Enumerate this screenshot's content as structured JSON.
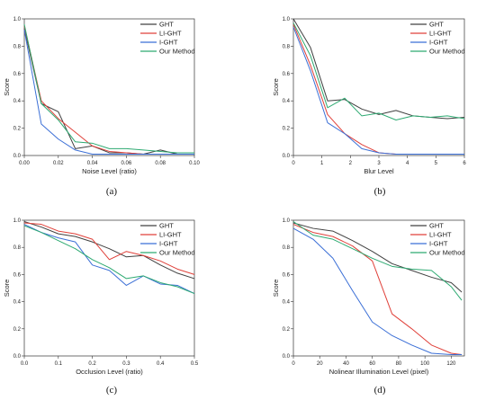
{
  "chart_data": [
    {
      "id": "a",
      "type": "line",
      "caption": "(a)",
      "xlabel": "Noise Level (ratio)",
      "ylabel": "Score",
      "xlim": [
        0,
        0.1
      ],
      "ylim": [
        0,
        1.0
      ],
      "xticks": [
        0.0,
        0.02,
        0.04,
        0.06,
        0.08,
        0.1
      ],
      "xtick_labels": [
        "0.00",
        "0.02",
        "0.04",
        "0.06",
        "0.08",
        "0.10"
      ],
      "yticks": [
        0.0,
        0.2,
        0.4,
        0.6,
        0.8,
        1.0
      ],
      "ytick_labels": [
        "0.0",
        "0.2",
        "0.4",
        "0.6",
        "0.8",
        "1.0"
      ],
      "legend_position": "top-right",
      "series": [
        {
          "name": "GHT",
          "color": "#404040",
          "x": [
            0,
            0.01,
            0.02,
            0.03,
            0.04,
            0.05,
            0.06,
            0.07,
            0.08,
            0.09,
            0.1
          ],
          "y": [
            0.93,
            0.38,
            0.32,
            0.05,
            0.07,
            0.02,
            0.02,
            0.01,
            0.04,
            0.01,
            0.01
          ]
        },
        {
          "name": "LI-GHT",
          "color": "#e0413a",
          "x": [
            0,
            0.01,
            0.02,
            0.03,
            0.04,
            0.05,
            0.06,
            0.07,
            0.08,
            0.09,
            0.1
          ],
          "y": [
            0.95,
            0.4,
            0.27,
            0.17,
            0.07,
            0.03,
            0.02,
            0.01,
            0.01,
            0.01,
            0.01
          ]
        },
        {
          "name": "I-GHT",
          "color": "#3b6fd6",
          "x": [
            0,
            0.01,
            0.02,
            0.03,
            0.04,
            0.05,
            0.06,
            0.07,
            0.08,
            0.09,
            0.1
          ],
          "y": [
            0.92,
            0.23,
            0.12,
            0.04,
            0.01,
            0.01,
            0.01,
            0.01,
            0.01,
            0.01,
            0.01
          ]
        },
        {
          "name": "Our Method",
          "color": "#2eaa72",
          "x": [
            0,
            0.01,
            0.02,
            0.03,
            0.04,
            0.05,
            0.06,
            0.07,
            0.08,
            0.09,
            0.1
          ],
          "y": [
            0.96,
            0.38,
            0.26,
            0.1,
            0.09,
            0.05,
            0.05,
            0.04,
            0.03,
            0.02,
            0.02
          ]
        }
      ]
    },
    {
      "id": "b",
      "type": "line",
      "caption": "(b)",
      "xlabel": "Blur Level",
      "ylabel": "Score",
      "xlim": [
        0,
        6
      ],
      "ylim": [
        0,
        1.0
      ],
      "xticks": [
        0,
        1,
        2,
        3,
        4,
        5,
        6
      ],
      "xtick_labels": [
        "0",
        "1",
        "2",
        "3",
        "4",
        "5",
        "6"
      ],
      "yticks": [
        0.0,
        0.2,
        0.4,
        0.6,
        0.8,
        1.0
      ],
      "ytick_labels": [
        "0.0",
        "0.2",
        "0.4",
        "0.6",
        "0.8",
        "1.0"
      ],
      "legend_position": "top-right",
      "series": [
        {
          "name": "GHT",
          "color": "#404040",
          "x": [
            0,
            0.6,
            1.2,
            1.8,
            2.4,
            3.0,
            3.6,
            4.2,
            4.8,
            5.4,
            6.0
          ],
          "y": [
            1.0,
            0.79,
            0.4,
            0.41,
            0.34,
            0.3,
            0.33,
            0.29,
            0.28,
            0.27,
            0.28
          ]
        },
        {
          "name": "LI-GHT",
          "color": "#e0413a",
          "x": [
            0,
            0.6,
            1.2,
            1.8,
            2.4,
            3.0,
            3.6,
            4.2,
            4.8,
            5.4,
            6.0
          ],
          "y": [
            0.96,
            0.66,
            0.3,
            0.16,
            0.08,
            0.02,
            0.01,
            0.01,
            0.01,
            0.01,
            0.01
          ]
        },
        {
          "name": "I-GHT",
          "color": "#3b6fd6",
          "x": [
            0,
            0.6,
            1.2,
            1.8,
            2.4,
            3.0,
            3.6,
            4.2,
            4.8,
            5.4,
            6.0
          ],
          "y": [
            0.94,
            0.62,
            0.24,
            0.16,
            0.05,
            0.02,
            0.01,
            0.01,
            0.01,
            0.01,
            0.01
          ]
        },
        {
          "name": "Our Method",
          "color": "#2eaa72",
          "x": [
            0,
            0.6,
            1.2,
            1.8,
            2.4,
            3.0,
            3.6,
            4.2,
            4.8,
            5.4,
            6.0
          ],
          "y": [
            0.97,
            0.73,
            0.35,
            0.42,
            0.29,
            0.31,
            0.26,
            0.29,
            0.28,
            0.29,
            0.27
          ]
        }
      ]
    },
    {
      "id": "c",
      "type": "line",
      "caption": "(c)",
      "xlabel": "Occlusion Level (ratio)",
      "ylabel": "Score",
      "xlim": [
        0,
        0.5
      ],
      "ylim": [
        0,
        1.0
      ],
      "xticks": [
        0.0,
        0.1,
        0.2,
        0.3,
        0.4,
        0.5
      ],
      "xtick_labels": [
        "0.0",
        "0.1",
        "0.2",
        "0.3",
        "0.4",
        "0.5"
      ],
      "yticks": [
        0.0,
        0.2,
        0.4,
        0.6,
        0.8,
        1.0
      ],
      "ytick_labels": [
        "0.0",
        "0.2",
        "0.4",
        "0.6",
        "0.8",
        "1.0"
      ],
      "legend_position": "top-right",
      "series": [
        {
          "name": "GHT",
          "color": "#404040",
          "x": [
            0,
            0.05,
            0.1,
            0.15,
            0.2,
            0.25,
            0.3,
            0.35,
            0.4,
            0.45,
            0.5
          ],
          "y": [
            0.99,
            0.95,
            0.9,
            0.88,
            0.84,
            0.79,
            0.73,
            0.74,
            0.67,
            0.61,
            0.57
          ]
        },
        {
          "name": "LI-GHT",
          "color": "#e0413a",
          "x": [
            0,
            0.05,
            0.1,
            0.15,
            0.2,
            0.25,
            0.3,
            0.35,
            0.4,
            0.45,
            0.5
          ],
          "y": [
            0.98,
            0.97,
            0.92,
            0.9,
            0.86,
            0.71,
            0.77,
            0.74,
            0.7,
            0.64,
            0.6
          ]
        },
        {
          "name": "I-GHT",
          "color": "#3b6fd6",
          "x": [
            0,
            0.05,
            0.1,
            0.15,
            0.2,
            0.25,
            0.3,
            0.35,
            0.4,
            0.45,
            0.5
          ],
          "y": [
            0.97,
            0.91,
            0.87,
            0.84,
            0.67,
            0.63,
            0.52,
            0.59,
            0.53,
            0.52,
            0.46
          ]
        },
        {
          "name": "Our Method",
          "color": "#2eaa72",
          "x": [
            0,
            0.05,
            0.1,
            0.15,
            0.2,
            0.25,
            0.3,
            0.35,
            0.4,
            0.45,
            0.5
          ],
          "y": [
            0.96,
            0.91,
            0.85,
            0.79,
            0.71,
            0.65,
            0.57,
            0.59,
            0.54,
            0.51,
            0.46
          ]
        }
      ]
    },
    {
      "id": "d",
      "type": "line",
      "caption": "(d)",
      "xlabel": "Nolinear Illumination Level (pixel)",
      "ylabel": "Score",
      "xlim": [
        0,
        130
      ],
      "ylim": [
        0,
        1.0
      ],
      "xticks": [
        0,
        20,
        40,
        60,
        80,
        100,
        120
      ],
      "xtick_labels": [
        "0",
        "20",
        "40",
        "60",
        "80",
        "100",
        "120"
      ],
      "yticks": [
        0.0,
        0.2,
        0.4,
        0.6,
        0.8,
        1.0
      ],
      "ytick_labels": [
        "0.0",
        "0.2",
        "0.4",
        "0.6",
        "0.8",
        "1.0"
      ],
      "legend_position": "top-right",
      "series": [
        {
          "name": "GHT",
          "color": "#404040",
          "x": [
            0,
            15,
            30,
            45,
            60,
            75,
            90,
            105,
            120,
            128
          ],
          "y": [
            0.98,
            0.94,
            0.92,
            0.85,
            0.77,
            0.68,
            0.63,
            0.58,
            0.54,
            0.47
          ]
        },
        {
          "name": "LI-GHT",
          "color": "#e0413a",
          "x": [
            0,
            15,
            30,
            45,
            60,
            75,
            90,
            105,
            120,
            128
          ],
          "y": [
            0.97,
            0.91,
            0.88,
            0.81,
            0.7,
            0.31,
            0.2,
            0.08,
            0.02,
            0.01
          ]
        },
        {
          "name": "I-GHT",
          "color": "#3b6fd6",
          "x": [
            0,
            15,
            30,
            45,
            60,
            75,
            90,
            105,
            120,
            128
          ],
          "y": [
            0.94,
            0.86,
            0.72,
            0.48,
            0.25,
            0.15,
            0.08,
            0.02,
            0.01,
            0.01
          ]
        },
        {
          "name": "Our Method",
          "color": "#2eaa72",
          "x": [
            0,
            15,
            30,
            45,
            60,
            75,
            90,
            105,
            120,
            128
          ],
          "y": [
            0.99,
            0.89,
            0.86,
            0.79,
            0.72,
            0.66,
            0.64,
            0.63,
            0.51,
            0.41
          ]
        }
      ]
    }
  ]
}
